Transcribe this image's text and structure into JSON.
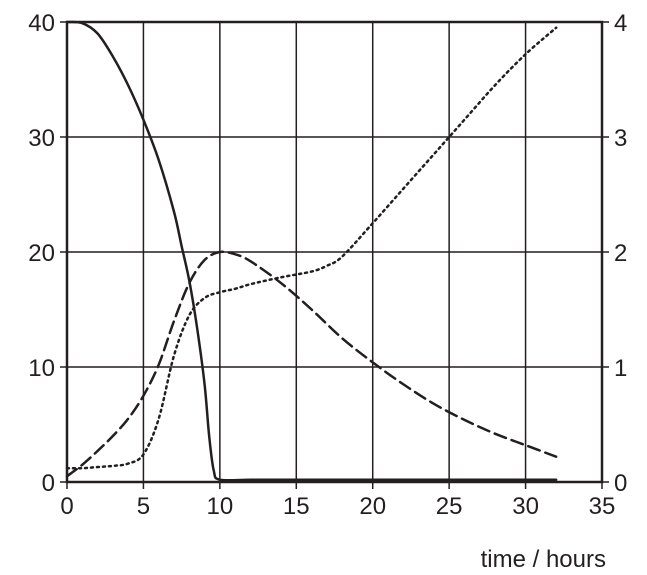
{
  "chart_data": {
    "type": "line",
    "xlabel": "time / hours",
    "xlim": [
      0,
      35
    ],
    "ylim_left": [
      0,
      40
    ],
    "ylim_right": [
      0,
      4
    ],
    "x_ticks": [
      "0",
      "5",
      "10",
      "15",
      "20",
      "25",
      "30",
      "35"
    ],
    "y_left_ticks": [
      "0",
      "10",
      "20",
      "30",
      "40"
    ],
    "y_right_ticks": [
      "0",
      "1",
      "2",
      "3",
      "4"
    ],
    "grid": true,
    "series": [
      {
        "style": "solid",
        "axis": "left",
        "x": [
          0,
          1,
          2,
          3,
          4,
          5,
          6,
          7,
          7.5,
          8,
          8.5,
          9,
          9.3,
          9.6,
          10,
          12,
          15,
          20,
          25,
          30,
          32
        ],
        "y": [
          40,
          39.9,
          39,
          37,
          34.5,
          31.5,
          28,
          23.5,
          20.5,
          17.5,
          13.5,
          8.5,
          4,
          1,
          0.2,
          0.2,
          0.2,
          0.2,
          0.2,
          0.2,
          0.2
        ]
      },
      {
        "style": "dashed",
        "axis": "left",
        "x": [
          0,
          1,
          2,
          3,
          4,
          5,
          6,
          7,
          8,
          9,
          10,
          11,
          12,
          14,
          16,
          18,
          20,
          22,
          24,
          26,
          28,
          30,
          32
        ],
        "y": [
          0.5,
          1.5,
          2.7,
          4,
          5.5,
          7.5,
          10.2,
          14,
          17.3,
          19.3,
          20,
          19.8,
          19.2,
          17.3,
          15,
          12.5,
          10.4,
          8.5,
          6.8,
          5.4,
          4.2,
          3.2,
          2.2
        ]
      },
      {
        "style": "dotted",
        "axis": "right",
        "x": [
          0,
          1,
          2,
          3,
          4,
          5,
          6,
          7,
          8,
          9,
          10,
          11,
          12,
          14,
          16,
          17,
          18,
          20,
          22,
          24,
          26,
          28,
          30,
          32
        ],
        "y": [
          0.12,
          0.12,
          0.13,
          0.14,
          0.16,
          0.24,
          0.55,
          1.1,
          1.45,
          1.6,
          1.65,
          1.68,
          1.72,
          1.78,
          1.83,
          1.88,
          1.96,
          2.25,
          2.55,
          2.85,
          3.15,
          3.45,
          3.72,
          3.95
        ]
      }
    ]
  }
}
